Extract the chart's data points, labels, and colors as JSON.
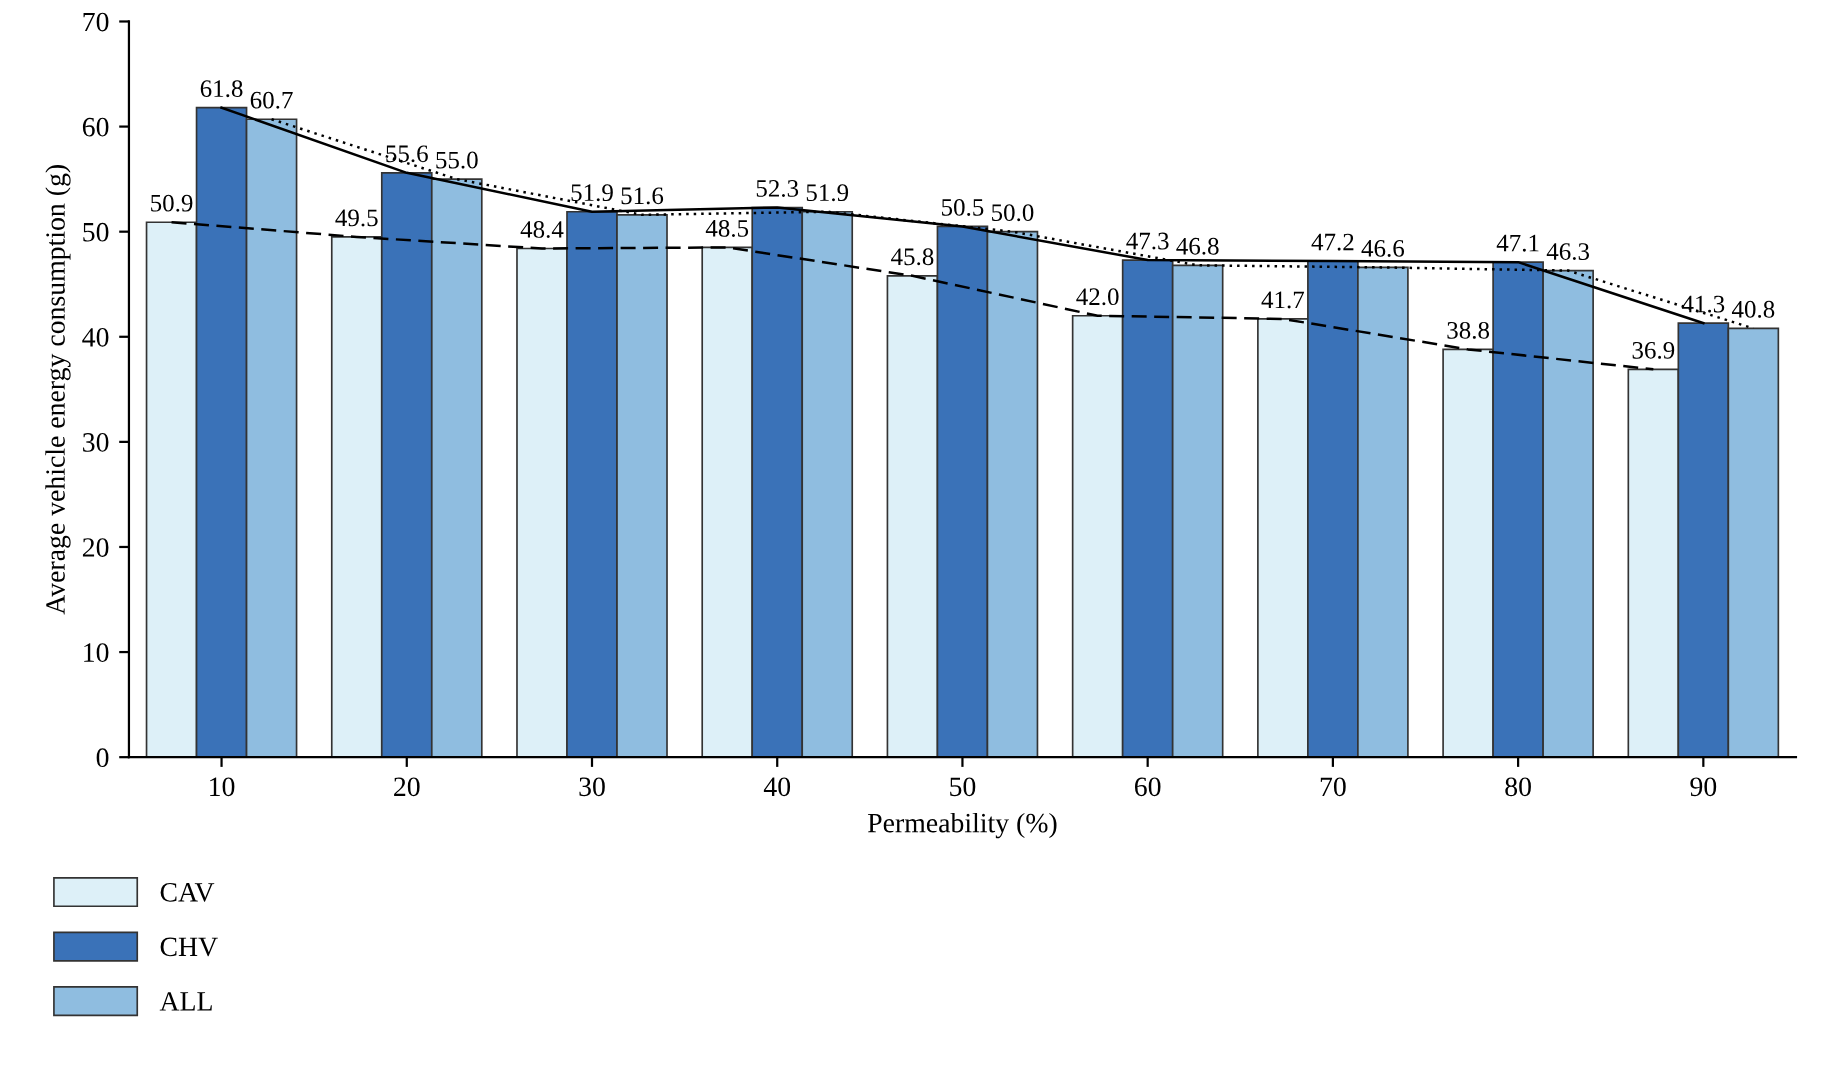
{
  "chart_data": {
    "type": "bar",
    "xlabel": "Permeability (%)",
    "ylabel": "Average vehicle energy consumption (g)",
    "categories": [
      "10",
      "20",
      "30",
      "40",
      "50",
      "60",
      "70",
      "80",
      "90"
    ],
    "series": [
      {
        "name": "CAV",
        "color": "#ddf0f8",
        "line_style": "dashed",
        "values": [
          50.9,
          49.5,
          48.4,
          48.5,
          45.8,
          42.0,
          41.7,
          38.8,
          36.9
        ],
        "value_labels": [
          "50.9",
          "49.5",
          "48.4",
          "48.5",
          "45.8",
          "42.0",
          "41.7",
          "38.8",
          "36.9"
        ]
      },
      {
        "name": "CHV",
        "color": "#3a72b8",
        "line_style": "solid",
        "values": [
          61.8,
          55.6,
          51.9,
          52.3,
          50.5,
          47.3,
          47.2,
          47.1,
          41.3
        ],
        "value_labels": [
          "61.8",
          "55.6",
          "51.9",
          "52.3",
          "50.5",
          "47.3",
          "47.2",
          "47.1",
          "41.3"
        ]
      },
      {
        "name": "ALL",
        "color": "#8fbde0",
        "line_style": "dotted",
        "values": [
          60.7,
          55.0,
          51.6,
          51.9,
          50.0,
          46.8,
          46.6,
          46.3,
          40.8
        ],
        "value_labels": [
          "60.7",
          "55.0",
          "51.6",
          "51.9",
          "50.0",
          "46.8",
          "46.6",
          "46.3",
          "40.8"
        ]
      }
    ],
    "ylim": [
      0,
      70
    ],
    "yticks": [
      0,
      10,
      20,
      30,
      40,
      50,
      60,
      70
    ],
    "grid": false,
    "legend": "bottom left"
  }
}
